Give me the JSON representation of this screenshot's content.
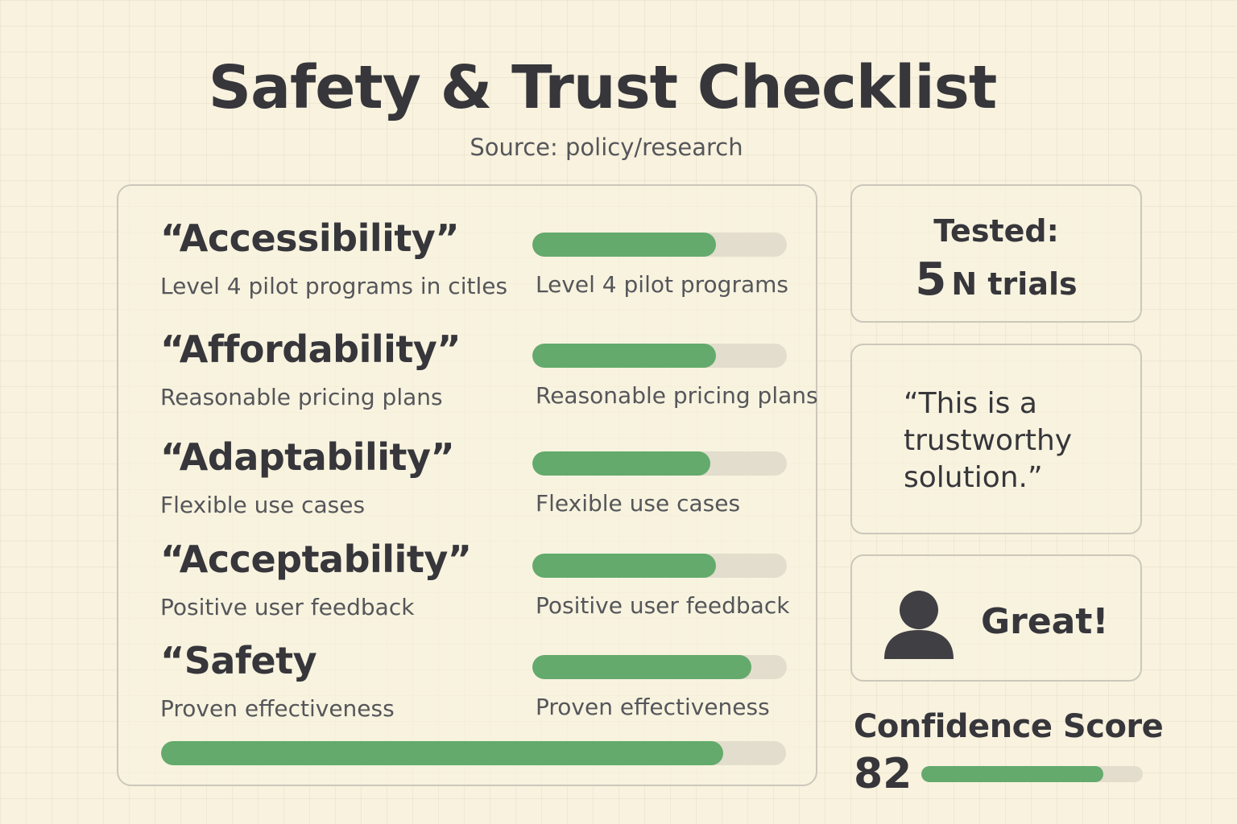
{
  "header": {
    "title": "Safety & Trust Checklist",
    "source": "Source: policy/research"
  },
  "checklist": {
    "items": [
      {
        "title": "“Accessibility”",
        "description": "Level 4 pilot programs in citles",
        "bar_label": "Level 4 pilot programs",
        "progress": 0.72
      },
      {
        "title": "“Affordability”",
        "description": "Reasonable pricing plans",
        "bar_label": "Reasonable pricing plans",
        "progress": 0.72
      },
      {
        "title": "“Adaptability”",
        "description": "Flexible use cases",
        "bar_label": "Flexible use cases",
        "progress": 0.7
      },
      {
        "title": "“Acceptability”",
        "description": "Positive user feedback",
        "bar_label": "Positive user feedback",
        "progress": 0.72
      },
      {
        "title": "“Safety",
        "description": "Proven effectiveness",
        "bar_label": "Proven effectiveness",
        "progress": 0.86
      }
    ],
    "overall_progress": 0.9
  },
  "tested_card": {
    "label": "Tested:",
    "count": "5",
    "unit": "N trials"
  },
  "quote_card": {
    "text": "“This is a trustworthy solution.”"
  },
  "reaction_card": {
    "icon": "person-icon",
    "text": "Great!"
  },
  "confidence": {
    "label": "Confidence Score",
    "value": "82",
    "progress": 0.82
  },
  "colors": {
    "background": "#f8f2de",
    "bar_fill": "#63aa6c",
    "bar_track": "#e2ddcc",
    "text": "#36363b"
  }
}
